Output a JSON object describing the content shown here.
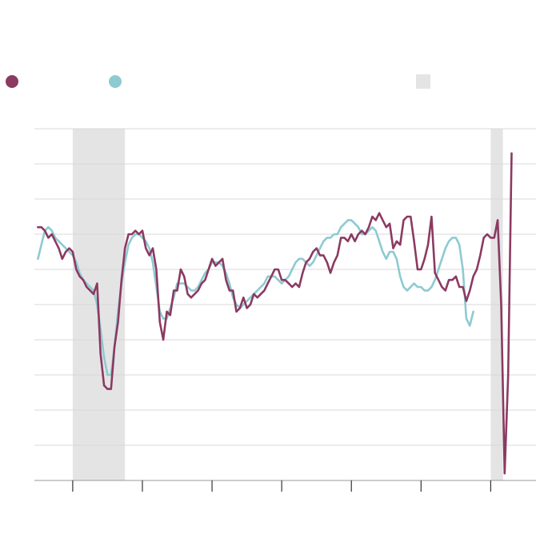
{
  "colors": {
    "series_1": "#8b3a62",
    "series_2": "#8ecad2",
    "shade": "#e4e4e4",
    "grid": "#d9d9d9",
    "axis": "#333333"
  },
  "legend": {
    "items": [
      {
        "label": "",
        "color": "#8b3a62",
        "shape": "dot"
      },
      {
        "label": "",
        "color": "#8ecad2",
        "shape": "dot"
      },
      {
        "label": "",
        "color": "#e4e4e4",
        "shape": "box"
      }
    ]
  },
  "chart_data": {
    "type": "line",
    "title": "",
    "xlabel": "",
    "ylabel": "",
    "xlim": [
      0,
      144
    ],
    "ylim": [
      0,
      100
    ],
    "grid": true,
    "legend_position": "top",
    "shaded_regions": [
      [
        11,
        26
      ],
      [
        131,
        134.5
      ]
    ],
    "xticks": [
      11,
      31,
      51,
      71,
      91,
      111,
      131
    ],
    "series": [
      {
        "values": [
          [
            1,
            72
          ],
          [
            2,
            72
          ],
          [
            3,
            71
          ],
          [
            4,
            69
          ],
          [
            5,
            70
          ],
          [
            6,
            68
          ],
          [
            7,
            66
          ],
          [
            8,
            63
          ],
          [
            9,
            65
          ],
          [
            10,
            66
          ],
          [
            11,
            65
          ],
          [
            12,
            60
          ],
          [
            13,
            58
          ],
          [
            14,
            57
          ],
          [
            15,
            55
          ],
          [
            16,
            54
          ],
          [
            17,
            53
          ],
          [
            18,
            56
          ],
          [
            19,
            36
          ],
          [
            20,
            27
          ],
          [
            21,
            26
          ],
          [
            22,
            26
          ],
          [
            23,
            38
          ],
          [
            24,
            45
          ],
          [
            25,
            57
          ],
          [
            26,
            66
          ],
          [
            27,
            70
          ],
          [
            28,
            70
          ],
          [
            29,
            71
          ],
          [
            30,
            70
          ],
          [
            31,
            71
          ],
          [
            32,
            66
          ],
          [
            33,
            64
          ],
          [
            34,
            66
          ],
          [
            35,
            60
          ],
          [
            36,
            45
          ],
          [
            37,
            40
          ],
          [
            38,
            48
          ],
          [
            39,
            47
          ],
          [
            40,
            54
          ],
          [
            41,
            54
          ],
          [
            42,
            60
          ],
          [
            43,
            58
          ],
          [
            44,
            53
          ],
          [
            45,
            52
          ],
          [
            46,
            53
          ],
          [
            47,
            54
          ],
          [
            48,
            56
          ],
          [
            49,
            57
          ],
          [
            50,
            60
          ],
          [
            51,
            63
          ],
          [
            52,
            61
          ],
          [
            53,
            62
          ],
          [
            54,
            63
          ],
          [
            55,
            57
          ],
          [
            56,
            54
          ],
          [
            57,
            54
          ],
          [
            58,
            48
          ],
          [
            59,
            49
          ],
          [
            60,
            52
          ],
          [
            61,
            49
          ],
          [
            62,
            50
          ],
          [
            63,
            53
          ],
          [
            64,
            52
          ],
          [
            65,
            53
          ],
          [
            66,
            54
          ],
          [
            67,
            56
          ],
          [
            68,
            58
          ],
          [
            69,
            60
          ],
          [
            70,
            60
          ],
          [
            71,
            57
          ],
          [
            72,
            57
          ],
          [
            73,
            56
          ],
          [
            74,
            55
          ],
          [
            75,
            56
          ],
          [
            76,
            55
          ],
          [
            77,
            59
          ],
          [
            78,
            62
          ],
          [
            79,
            63
          ],
          [
            80,
            65
          ],
          [
            81,
            66
          ],
          [
            82,
            64
          ],
          [
            83,
            64
          ],
          [
            84,
            62
          ],
          [
            85,
            59
          ],
          [
            86,
            62
          ],
          [
            87,
            64
          ],
          [
            88,
            69
          ],
          [
            89,
            69
          ],
          [
            90,
            68
          ],
          [
            91,
            70
          ],
          [
            92,
            68
          ],
          [
            93,
            70
          ],
          [
            94,
            71
          ],
          [
            95,
            70
          ],
          [
            96,
            72
          ],
          [
            97,
            75
          ],
          [
            98,
            74
          ],
          [
            99,
            76
          ],
          [
            100,
            74
          ],
          [
            101,
            72
          ],
          [
            102,
            73
          ],
          [
            103,
            66
          ],
          [
            104,
            68
          ],
          [
            105,
            67
          ],
          [
            106,
            74
          ],
          [
            107,
            75
          ],
          [
            108,
            75
          ],
          [
            109,
            68
          ],
          [
            110,
            60
          ],
          [
            111,
            60
          ],
          [
            112,
            63
          ],
          [
            113,
            67
          ],
          [
            114,
            75
          ],
          [
            115,
            59
          ],
          [
            116,
            57
          ],
          [
            117,
            55
          ],
          [
            118,
            54
          ],
          [
            119,
            57
          ],
          [
            120,
            57
          ],
          [
            121,
            58
          ],
          [
            122,
            55
          ],
          [
            123,
            55
          ],
          [
            124,
            51
          ],
          [
            125,
            54
          ],
          [
            126,
            58
          ],
          [
            127,
            60
          ],
          [
            128,
            64
          ],
          [
            129,
            69
          ],
          [
            130,
            70
          ],
          [
            131,
            69
          ],
          [
            132,
            69
          ],
          [
            133,
            74
          ],
          [
            134,
            50
          ],
          [
            135,
            2
          ],
          [
            136,
            30
          ],
          [
            137,
            93
          ]
        ]
      },
      {
        "values": [
          [
            1,
            63
          ],
          [
            2,
            67
          ],
          [
            3,
            71
          ],
          [
            4,
            72
          ],
          [
            5,
            71
          ],
          [
            6,
            69
          ],
          [
            7,
            68
          ],
          [
            8,
            67
          ],
          [
            9,
            66
          ],
          [
            10,
            65
          ],
          [
            11,
            64
          ],
          [
            12,
            62
          ],
          [
            13,
            59
          ],
          [
            14,
            57
          ],
          [
            15,
            56
          ],
          [
            16,
            55
          ],
          [
            17,
            54
          ],
          [
            18,
            50
          ],
          [
            19,
            43
          ],
          [
            20,
            35
          ],
          [
            21,
            30
          ],
          [
            22,
            30
          ],
          [
            23,
            38
          ],
          [
            24,
            48
          ],
          [
            25,
            56
          ],
          [
            26,
            62
          ],
          [
            27,
            67
          ],
          [
            28,
            69
          ],
          [
            29,
            70
          ],
          [
            30,
            70
          ],
          [
            31,
            69
          ],
          [
            32,
            68
          ],
          [
            33,
            66
          ],
          [
            34,
            62
          ],
          [
            35,
            55
          ],
          [
            36,
            48
          ],
          [
            37,
            46
          ],
          [
            38,
            46
          ],
          [
            39,
            49
          ],
          [
            40,
            52
          ],
          [
            41,
            56
          ],
          [
            42,
            56
          ],
          [
            43,
            56
          ],
          [
            44,
            55
          ],
          [
            45,
            54
          ],
          [
            46,
            54
          ],
          [
            47,
            55
          ],
          [
            48,
            57
          ],
          [
            49,
            59
          ],
          [
            50,
            60
          ],
          [
            51,
            62
          ],
          [
            52,
            62
          ],
          [
            53,
            62
          ],
          [
            54,
            61
          ],
          [
            55,
            59
          ],
          [
            56,
            56
          ],
          [
            57,
            52
          ],
          [
            58,
            50
          ],
          [
            59,
            49
          ],
          [
            60,
            50
          ],
          [
            61,
            51
          ],
          [
            62,
            52
          ],
          [
            63,
            53
          ],
          [
            64,
            54
          ],
          [
            65,
            55
          ],
          [
            66,
            56
          ],
          [
            67,
            58
          ],
          [
            68,
            58
          ],
          [
            69,
            58
          ],
          [
            70,
            57
          ],
          [
            71,
            56
          ],
          [
            72,
            57
          ],
          [
            73,
            58
          ],
          [
            74,
            60
          ],
          [
            75,
            62
          ],
          [
            76,
            63
          ],
          [
            77,
            63
          ],
          [
            78,
            62
          ],
          [
            79,
            61
          ],
          [
            80,
            62
          ],
          [
            81,
            64
          ],
          [
            82,
            66
          ],
          [
            83,
            68
          ],
          [
            84,
            69
          ],
          [
            85,
            69
          ],
          [
            86,
            70
          ],
          [
            87,
            70
          ],
          [
            88,
            72
          ],
          [
            89,
            73
          ],
          [
            90,
            74
          ],
          [
            91,
            74
          ],
          [
            92,
            73
          ],
          [
            93,
            72
          ],
          [
            94,
            70
          ],
          [
            95,
            70
          ],
          [
            96,
            71
          ],
          [
            97,
            72
          ],
          [
            98,
            71
          ],
          [
            99,
            68
          ],
          [
            100,
            65
          ],
          [
            101,
            63
          ],
          [
            102,
            65
          ],
          [
            103,
            65
          ],
          [
            104,
            63
          ],
          [
            105,
            58
          ],
          [
            106,
            55
          ],
          [
            107,
            54
          ],
          [
            108,
            55
          ],
          [
            109,
            56
          ],
          [
            110,
            55
          ],
          [
            111,
            55
          ],
          [
            112,
            54
          ],
          [
            113,
            54
          ],
          [
            114,
            55
          ],
          [
            115,
            57
          ],
          [
            116,
            60
          ],
          [
            117,
            63
          ],
          [
            118,
            66
          ],
          [
            119,
            68
          ],
          [
            120,
            69
          ],
          [
            121,
            69
          ],
          [
            122,
            67
          ],
          [
            123,
            60
          ],
          [
            124,
            46
          ],
          [
            125,
            44
          ],
          [
            126,
            48
          ]
        ]
      }
    ]
  }
}
